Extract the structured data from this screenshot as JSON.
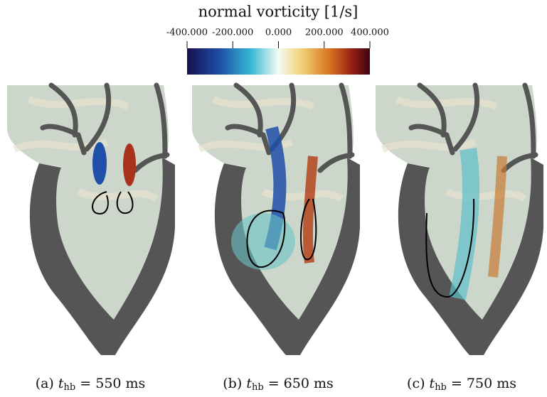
{
  "colorbar": {
    "title": "normal vorticity [1/s]",
    "range": [
      -400,
      400
    ],
    "ticks": [
      {
        "value": -400,
        "label": "-400.000"
      },
      {
        "value": -200,
        "label": "-200.000"
      },
      {
        "value": 0,
        "label": "0.000"
      },
      {
        "value": 200,
        "label": "200.000"
      },
      {
        "value": 400,
        "label": "400.000"
      }
    ]
  },
  "panels": [
    {
      "label": "(a)",
      "variable": "t",
      "subscript": "hb",
      "time": "= 550 ms"
    },
    {
      "label": "(b)",
      "variable": "t",
      "subscript": "hb",
      "time": "= 650 ms"
    },
    {
      "label": "(c)",
      "variable": "t",
      "subscript": "hb",
      "time": "= 750 ms"
    }
  ]
}
